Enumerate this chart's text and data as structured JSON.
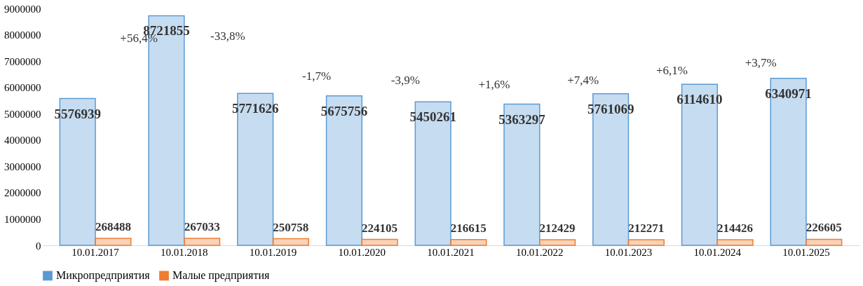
{
  "chart_data": {
    "type": "bar",
    "categories": [
      "10.01.2017",
      "10.01.2018",
      "10.01.2019",
      "10.01.2020",
      "10.01.2021",
      "10.01.2022",
      "10.01.2023",
      "10.01.2024",
      "10.01.2025"
    ],
    "series": [
      {
        "name": "Микропредприятия",
        "color": "#5b9bd5",
        "values": [
          5576939,
          8721855,
          5771626,
          5675756,
          5450261,
          5363297,
          5761069,
          6114610,
          6340971
        ]
      },
      {
        "name": "Малые предприятия",
        "color": "#ed7d31",
        "values": [
          268488,
          267033,
          250758,
          224105,
          216615,
          212429,
          212271,
          214426,
          226605
        ]
      }
    ],
    "ylim": [
      0,
      9000000
    ],
    "yticks": [
      0,
      1000000,
      2000000,
      3000000,
      4000000,
      5000000,
      6000000,
      7000000,
      8000000,
      9000000
    ],
    "annotations": [
      "+56,4%",
      "-33,8%",
      "-1,7%",
      "-3,9%",
      "+1,6%",
      "+7,4%",
      "+6,1%",
      "+3,7%"
    ],
    "data_labels": true,
    "grid": false,
    "legend": "bottom"
  }
}
